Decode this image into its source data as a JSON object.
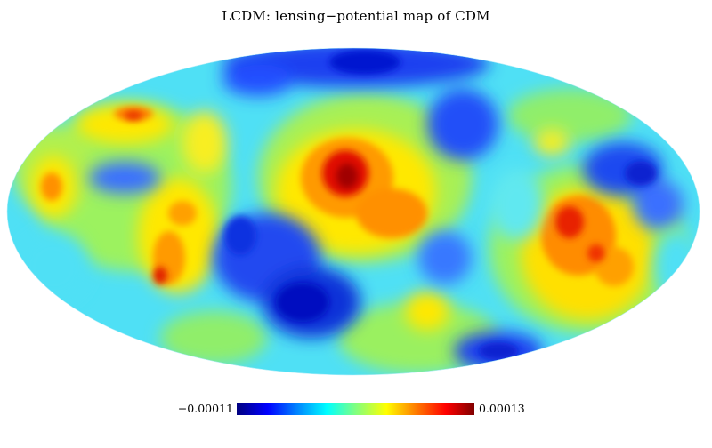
{
  "title": "LCDM: lensing−potential map of CDM",
  "colorbar": {
    "min_label": "−0.00011",
    "max_label": "0.00013",
    "colormap": "jet",
    "colors": [
      "#00007f",
      "#0000ff",
      "#0080ff",
      "#00ffff",
      "#80ff80",
      "#ffff00",
      "#ff8000",
      "#ff0000",
      "#7f0000"
    ]
  },
  "map": {
    "projection": "mollweide",
    "background_color": "#4fe0f5"
  }
}
